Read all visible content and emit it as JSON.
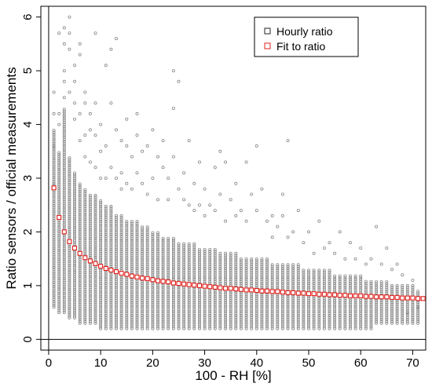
{
  "chart_data": {
    "type": "scatter",
    "xlabel": "100 - RH [%]",
    "ylabel": "Ratio sensors / official measurements",
    "xlim": [
      -1.5,
      72.5
    ],
    "ylim": [
      -0.2,
      6.2
    ],
    "x_ticks": [
      0,
      10,
      20,
      30,
      40,
      50,
      60,
      70
    ],
    "y_ticks": [
      0,
      1,
      2,
      3,
      4,
      5,
      6
    ],
    "x_tick_labels": [
      "0",
      "10",
      "20",
      "30",
      "40",
      "50",
      "60",
      "70"
    ],
    "y_tick_labels": [
      "0",
      "1",
      "2",
      "3",
      "4",
      "5",
      "6"
    ],
    "reference_lines": {
      "x": 0,
      "y": 0
    },
    "legend": {
      "placement": "top-right",
      "entries": [
        {
          "label": "Hourly ratio",
          "color": "#222222",
          "marker": "square-open"
        },
        {
          "label": "Fit to ratio",
          "color": "#e0201b",
          "marker": "square-open"
        }
      ]
    },
    "series": [
      {
        "name": "Hourly ratio",
        "color": "#8a8a8a",
        "marker": "circle-open",
        "kind": "scatter-columns",
        "columns": [
          {
            "x": 1,
            "lo": 0.6,
            "hi": 3.9,
            "outliers": [
              4.2,
              4.6,
              2.9,
              3.6
            ]
          },
          {
            "x": 2,
            "lo": 0.5,
            "hi": 3.5,
            "outliers": [
              5.7,
              4.2,
              4.0
            ]
          },
          {
            "x": 3,
            "lo": 0.5,
            "hi": 4.3,
            "outliers": [
              5.8,
              5.5,
              5.0,
              4.8,
              4.5
            ]
          },
          {
            "x": 4,
            "lo": 0.4,
            "hi": 3.4,
            "outliers": [
              6.0,
              5.7,
              5.4,
              4.6
            ]
          },
          {
            "x": 5,
            "lo": 0.4,
            "hi": 3.1,
            "outliers": [
              5.1,
              4.8,
              4.4,
              4.1
            ]
          },
          {
            "x": 6,
            "lo": 0.3,
            "hi": 2.9,
            "outliers": [
              5.5,
              5.3,
              4.2,
              3.7
            ]
          },
          {
            "x": 7,
            "lo": 0.3,
            "hi": 2.8,
            "outliers": [
              4.6,
              4.4,
              3.8,
              3.4
            ]
          },
          {
            "x": 8,
            "lo": 0.3,
            "hi": 2.7,
            "outliers": [
              4.2,
              3.9,
              3.3
            ]
          },
          {
            "x": 9,
            "lo": 0.3,
            "hi": 2.7,
            "outliers": [
              5.7,
              4.4,
              3.8,
              3.2
            ]
          },
          {
            "x": 10,
            "lo": 0.2,
            "hi": 2.6,
            "outliers": [
              4.0,
              3.5,
              3.0
            ]
          },
          {
            "x": 11,
            "lo": 0.2,
            "hi": 2.5,
            "outliers": [
              5.1,
              3.6,
              3.0
            ]
          },
          {
            "x": 12,
            "lo": 0.2,
            "hi": 2.5,
            "outliers": [
              5.4,
              4.4,
              3.2
            ]
          },
          {
            "x": 13,
            "lo": 0.2,
            "hi": 2.3,
            "outliers": [
              5.6,
              3.9,
              3.0
            ]
          },
          {
            "x": 14,
            "lo": 0.2,
            "hi": 2.3,
            "outliers": [
              3.7,
              3.1,
              2.8
            ]
          },
          {
            "x": 15,
            "lo": 0.2,
            "hi": 2.2,
            "outliers": [
              4.1,
              3.6,
              2.9
            ]
          },
          {
            "x": 16,
            "lo": 0.2,
            "hi": 2.2,
            "outliers": [
              3.4,
              2.8
            ]
          },
          {
            "x": 17,
            "lo": 0.2,
            "hi": 2.2,
            "outliers": [
              4.2,
              3.8,
              3.1
            ]
          },
          {
            "x": 18,
            "lo": 0.2,
            "hi": 2.1,
            "outliers": [
              3.5,
              2.9
            ]
          },
          {
            "x": 19,
            "lo": 0.2,
            "hi": 2.1,
            "outliers": [
              3.6,
              2.7
            ]
          },
          {
            "x": 20,
            "lo": 0.2,
            "hi": 2.0,
            "outliers": [
              3.9,
              3.0
            ]
          },
          {
            "x": 21,
            "lo": 0.2,
            "hi": 2.0,
            "outliers": [
              3.4,
              2.6
            ]
          },
          {
            "x": 22,
            "lo": 0.2,
            "hi": 1.9,
            "outliers": [
              3.7,
              3.2
            ]
          },
          {
            "x": 23,
            "lo": 0.2,
            "hi": 1.9,
            "outliers": [
              3.0,
              2.6
            ]
          },
          {
            "x": 24,
            "lo": 0.2,
            "hi": 1.9,
            "outliers": [
              5.0,
              4.3,
              3.4
            ]
          },
          {
            "x": 25,
            "lo": 0.2,
            "hi": 1.8,
            "outliers": [
              4.8,
              2.8
            ]
          },
          {
            "x": 26,
            "lo": 0.2,
            "hi": 1.8,
            "outliers": [
              3.1,
              2.6
            ]
          },
          {
            "x": 27,
            "lo": 0.2,
            "hi": 1.8,
            "outliers": [
              3.7,
              2.5
            ]
          },
          {
            "x": 28,
            "lo": 0.2,
            "hi": 1.8,
            "outliers": [
              2.9,
              2.4
            ]
          },
          {
            "x": 29,
            "lo": 0.2,
            "hi": 1.7,
            "outliers": [
              3.3,
              2.5
            ]
          },
          {
            "x": 30,
            "lo": 0.2,
            "hi": 1.7,
            "outliers": [
              2.8,
              2.3
            ]
          },
          {
            "x": 31,
            "lo": 0.2,
            "hi": 1.7,
            "outliers": [
              2.5
            ]
          },
          {
            "x": 32,
            "lo": 0.2,
            "hi": 1.7,
            "outliers": [
              3.2,
              2.4
            ]
          },
          {
            "x": 33,
            "lo": 0.2,
            "hi": 1.6,
            "outliers": [
              3.5,
              2.7
            ]
          },
          {
            "x": 34,
            "lo": 0.2,
            "hi": 1.6,
            "outliers": [
              3.3,
              2.2
            ]
          },
          {
            "x": 35,
            "lo": 0.2,
            "hi": 1.6,
            "outliers": [
              2.6
            ]
          },
          {
            "x": 36,
            "lo": 0.2,
            "hi": 1.6,
            "outliers": [
              2.9,
              2.3
            ]
          },
          {
            "x": 37,
            "lo": 0.2,
            "hi": 1.5,
            "outliers": [
              2.4
            ]
          },
          {
            "x": 38,
            "lo": 0.2,
            "hi": 1.5,
            "outliers": [
              3.3,
              2.2
            ]
          },
          {
            "x": 39,
            "lo": 0.2,
            "hi": 1.5,
            "outliers": [
              2.7
            ]
          },
          {
            "x": 40,
            "lo": 0.2,
            "hi": 1.5,
            "outliers": [
              3.6,
              2.4
            ]
          },
          {
            "x": 41,
            "lo": 0.2,
            "hi": 1.5,
            "outliers": [
              2.8
            ]
          },
          {
            "x": 42,
            "lo": 0.2,
            "hi": 1.5,
            "outliers": [
              2.2
            ]
          },
          {
            "x": 43,
            "lo": 0.2,
            "hi": 1.4,
            "outliers": [
              2.3,
              1.9
            ]
          },
          {
            "x": 44,
            "lo": 0.2,
            "hi": 1.4,
            "outliers": [
              2.1
            ]
          },
          {
            "x": 45,
            "lo": 0.2,
            "hi": 1.4,
            "outliers": [
              2.3,
              2.7
            ]
          },
          {
            "x": 46,
            "lo": 0.2,
            "hi": 1.4,
            "outliers": [
              3.7,
              1.9
            ]
          },
          {
            "x": 47,
            "lo": 0.2,
            "hi": 1.4,
            "outliers": [
              2.0
            ]
          },
          {
            "x": 48,
            "lo": 0.2,
            "hi": 1.4,
            "outliers": [
              2.4
            ]
          },
          {
            "x": 49,
            "lo": 0.2,
            "hi": 1.3,
            "outliers": [
              1.8
            ]
          },
          {
            "x": 50,
            "lo": 0.2,
            "hi": 1.3,
            "outliers": [
              2.0
            ]
          },
          {
            "x": 51,
            "lo": 0.2,
            "hi": 1.3,
            "outliers": [
              1.6
            ]
          },
          {
            "x": 52,
            "lo": 0.2,
            "hi": 1.3,
            "outliers": [
              2.2
            ]
          },
          {
            "x": 53,
            "lo": 0.2,
            "hi": 1.3,
            "outliers": [
              1.7
            ]
          },
          {
            "x": 54,
            "lo": 0.2,
            "hi": 1.3,
            "outliers": [
              1.8
            ]
          },
          {
            "x": 55,
            "lo": 0.2,
            "hi": 1.2,
            "outliers": [
              1.6
            ]
          },
          {
            "x": 56,
            "lo": 0.2,
            "hi": 1.2,
            "outliers": [
              2.0
            ]
          },
          {
            "x": 57,
            "lo": 0.2,
            "hi": 1.2,
            "outliers": [
              1.5
            ]
          },
          {
            "x": 58,
            "lo": 0.2,
            "hi": 1.2,
            "outliers": [
              1.8
            ]
          },
          {
            "x": 59,
            "lo": 0.2,
            "hi": 1.2,
            "outliers": [
              1.5
            ]
          },
          {
            "x": 60,
            "lo": 0.2,
            "hi": 1.2,
            "outliers": [
              1.7
            ]
          },
          {
            "x": 61,
            "lo": 0.2,
            "hi": 1.1,
            "outliers": [
              1.4
            ]
          },
          {
            "x": 62,
            "lo": 0.2,
            "hi": 1.1,
            "outliers": [
              1.5
            ]
          },
          {
            "x": 63,
            "lo": 0.3,
            "hi": 1.1,
            "outliers": [
              2.1
            ]
          },
          {
            "x": 64,
            "lo": 0.3,
            "hi": 1.1,
            "outliers": [
              1.4
            ]
          },
          {
            "x": 65,
            "lo": 0.3,
            "hi": 1.1,
            "outliers": [
              1.7
            ]
          },
          {
            "x": 66,
            "lo": 0.3,
            "hi": 1.0,
            "outliers": [
              1.3
            ]
          },
          {
            "x": 67,
            "lo": 0.3,
            "hi": 1.0,
            "outliers": [
              1.4
            ]
          },
          {
            "x": 68,
            "lo": 0.3,
            "hi": 1.0,
            "outliers": [
              1.2
            ]
          },
          {
            "x": 69,
            "lo": 0.3,
            "hi": 1.0,
            "outliers": [
              0.5
            ]
          },
          {
            "x": 70,
            "lo": 0.3,
            "hi": 1.0,
            "outliers": [
              1.1
            ]
          },
          {
            "x": 71,
            "lo": 0.3,
            "hi": 0.9,
            "outliers": [
              0.6
            ]
          }
        ]
      },
      {
        "name": "Fit to ratio",
        "color": "#e0201b",
        "marker": "square-open",
        "kind": "fit",
        "x": [
          1,
          2,
          3,
          4,
          5,
          6,
          7,
          8,
          9,
          10,
          11,
          12,
          13,
          14,
          15,
          16,
          17,
          18,
          19,
          20,
          21,
          22,
          23,
          24,
          25,
          26,
          27,
          28,
          29,
          30,
          31,
          32,
          33,
          34,
          35,
          36,
          37,
          38,
          39,
          40,
          41,
          42,
          43,
          44,
          45,
          46,
          47,
          48,
          49,
          50,
          51,
          52,
          53,
          54,
          55,
          56,
          57,
          58,
          59,
          60,
          61,
          62,
          63,
          64,
          65,
          66,
          67,
          68,
          69,
          70,
          71,
          72
        ],
        "y": [
          2.82,
          2.27,
          2.0,
          1.82,
          1.7,
          1.6,
          1.52,
          1.46,
          1.41,
          1.36,
          1.32,
          1.29,
          1.26,
          1.23,
          1.21,
          1.18,
          1.16,
          1.14,
          1.13,
          1.11,
          1.09,
          1.08,
          1.07,
          1.05,
          1.04,
          1.03,
          1.02,
          1.01,
          1.0,
          0.99,
          0.98,
          0.97,
          0.96,
          0.95,
          0.95,
          0.94,
          0.93,
          0.92,
          0.92,
          0.91,
          0.9,
          0.9,
          0.89,
          0.89,
          0.88,
          0.87,
          0.87,
          0.86,
          0.86,
          0.85,
          0.85,
          0.84,
          0.84,
          0.83,
          0.83,
          0.82,
          0.82,
          0.81,
          0.81,
          0.81,
          0.8,
          0.8,
          0.79,
          0.79,
          0.79,
          0.78,
          0.78,
          0.77,
          0.77,
          0.77,
          0.76,
          0.76
        ]
      }
    ]
  }
}
